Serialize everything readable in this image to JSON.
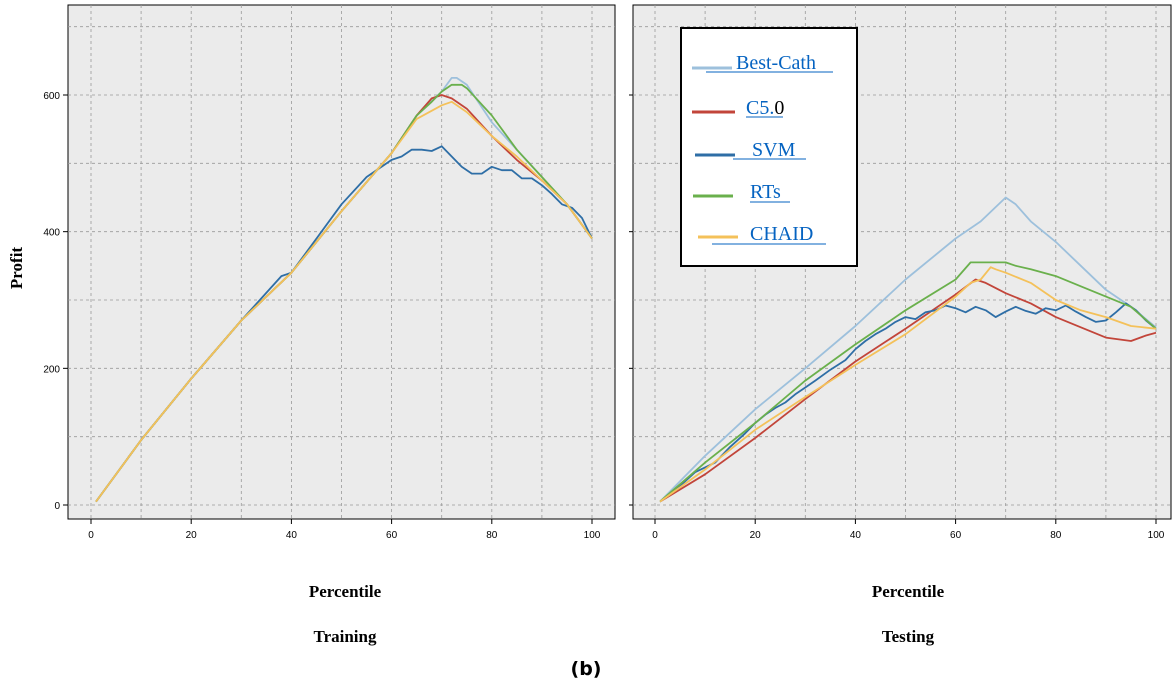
{
  "figure": {
    "caption": "(b)"
  },
  "chart_data": [
    {
      "type": "line",
      "panel": "left",
      "title": "",
      "xlabel": "Percentile",
      "panel_label": "Training",
      "ylabel": "Profit",
      "xlim": [
        0,
        100
      ],
      "ylim": [
        -20,
        720
      ],
      "xticks": [
        0,
        20,
        40,
        60,
        80,
        100
      ],
      "yticks": [
        0,
        200,
        400,
        600
      ],
      "grid": true,
      "series": [
        {
          "name": "Best-Cath",
          "color": "#9dc0dc",
          "x": [
            1,
            10,
            20,
            30,
            40,
            50,
            60,
            65,
            70,
            72,
            73,
            75,
            80,
            85,
            90,
            95,
            100
          ],
          "y": [
            5,
            95,
            185,
            270,
            340,
            430,
            515,
            570,
            605,
            625,
            625,
            615,
            560,
            520,
            480,
            440,
            390
          ]
        },
        {
          "name": "C5.0",
          "color": "#c2453a",
          "x": [
            1,
            10,
            20,
            30,
            40,
            50,
            60,
            65,
            68,
            70,
            72,
            75,
            80,
            85,
            90,
            95,
            100
          ],
          "y": [
            5,
            95,
            185,
            270,
            340,
            430,
            515,
            570,
            595,
            600,
            595,
            580,
            540,
            505,
            475,
            440,
            390
          ]
        },
        {
          "name": "SVM",
          "color": "#2e6ea6",
          "x": [
            1,
            10,
            20,
            30,
            38,
            40,
            45,
            50,
            55,
            60,
            62,
            64,
            66,
            68,
            70,
            72,
            74,
            76,
            78,
            80,
            82,
            84,
            86,
            88,
            90,
            92,
            94,
            96,
            98,
            100
          ],
          "y": [
            5,
            95,
            185,
            270,
            335,
            340,
            390,
            440,
            480,
            505,
            510,
            520,
            520,
            518,
            525,
            510,
            495,
            485,
            485,
            495,
            490,
            490,
            478,
            478,
            468,
            455,
            440,
            435,
            420,
            390
          ]
        },
        {
          "name": "RTs",
          "color": "#6ab04c",
          "x": [
            1,
            10,
            20,
            30,
            40,
            50,
            60,
            65,
            68,
            70,
            72,
            74,
            75,
            80,
            85,
            90,
            95,
            100
          ],
          "y": [
            5,
            95,
            185,
            270,
            340,
            430,
            515,
            570,
            590,
            605,
            615,
            615,
            610,
            570,
            520,
            480,
            440,
            390
          ]
        },
        {
          "name": "CHAID",
          "color": "#f4c15a",
          "x": [
            1,
            10,
            20,
            30,
            40,
            50,
            60,
            65,
            70,
            72,
            75,
            80,
            85,
            90,
            95,
            100
          ],
          "y": [
            5,
            95,
            185,
            270,
            340,
            430,
            515,
            565,
            585,
            590,
            575,
            540,
            510,
            475,
            440,
            390
          ]
        }
      ]
    },
    {
      "type": "line",
      "panel": "right",
      "title": "",
      "xlabel": "Percentile",
      "panel_label": "Testing",
      "xlim": [
        0,
        100
      ],
      "ylim": [
        -20,
        720
      ],
      "xticks": [
        0,
        20,
        40,
        60,
        80,
        100
      ],
      "yticks": [
        0,
        200,
        400,
        600
      ],
      "grid": true,
      "legend": {
        "position": "top-left",
        "entries": [
          {
            "name": "Best-Cath",
            "color": "#9dc0dc"
          },
          {
            "name": "C5.0",
            "color": "#c2453a"
          },
          {
            "name": "SVM",
            "color": "#2e6ea6"
          },
          {
            "name": "RTs",
            "color": "#6ab04c"
          },
          {
            "name": "CHAID",
            "color": "#f4c15a"
          }
        ]
      },
      "series": [
        {
          "name": "Best-Cath",
          "color": "#9dc0dc",
          "x": [
            1,
            10,
            20,
            30,
            40,
            50,
            60,
            65,
            70,
            72,
            75,
            80,
            85,
            90,
            95,
            100
          ],
          "y": [
            5,
            72,
            140,
            200,
            262,
            330,
            390,
            415,
            450,
            440,
            415,
            385,
            350,
            315,
            290,
            260
          ]
        },
        {
          "name": "C5.0",
          "color": "#c2453a",
          "x": [
            1,
            10,
            20,
            30,
            40,
            50,
            60,
            64,
            66,
            70,
            75,
            80,
            85,
            90,
            95,
            98,
            100
          ],
          "y": [
            5,
            45,
            98,
            155,
            210,
            258,
            308,
            330,
            325,
            310,
            295,
            275,
            260,
            245,
            240,
            248,
            252
          ]
        },
        {
          "name": "SVM",
          "color": "#2e6ea6",
          "x": [
            1,
            5,
            8,
            10,
            12,
            15,
            18,
            20,
            22,
            24,
            26,
            28,
            30,
            32,
            35,
            38,
            40,
            42,
            44,
            46,
            48,
            50,
            52,
            54,
            56,
            58,
            60,
            62,
            64,
            66,
            68,
            70,
            72,
            74,
            76,
            78,
            80,
            82,
            84,
            86,
            88,
            90,
            92,
            94,
            96,
            98,
            100
          ],
          "y": [
            5,
            28,
            48,
            55,
            62,
            85,
            105,
            120,
            132,
            142,
            150,
            162,
            172,
            182,
            198,
            212,
            228,
            240,
            250,
            258,
            268,
            275,
            272,
            282,
            285,
            292,
            288,
            282,
            290,
            285,
            275,
            283,
            290,
            284,
            280,
            288,
            285,
            292,
            283,
            275,
            268,
            270,
            282,
            295,
            285,
            270,
            258
          ]
        },
        {
          "name": "RTs",
          "color": "#6ab04c",
          "x": [
            1,
            10,
            20,
            30,
            40,
            50,
            60,
            63,
            65,
            70,
            72,
            75,
            80,
            85,
            90,
            95,
            100
          ],
          "y": [
            5,
            62,
            120,
            182,
            235,
            285,
            330,
            355,
            355,
            355,
            350,
            345,
            335,
            320,
            305,
            290,
            258
          ]
        },
        {
          "name": "CHAID",
          "color": "#f4c15a",
          "x": [
            1,
            10,
            20,
            30,
            40,
            50,
            60,
            63,
            65,
            67,
            68,
            70,
            75,
            80,
            85,
            90,
            95,
            100
          ],
          "y": [
            5,
            52,
            110,
            158,
            205,
            250,
            305,
            325,
            330,
            348,
            345,
            340,
            325,
            300,
            285,
            275,
            262,
            258
          ]
        }
      ]
    }
  ]
}
